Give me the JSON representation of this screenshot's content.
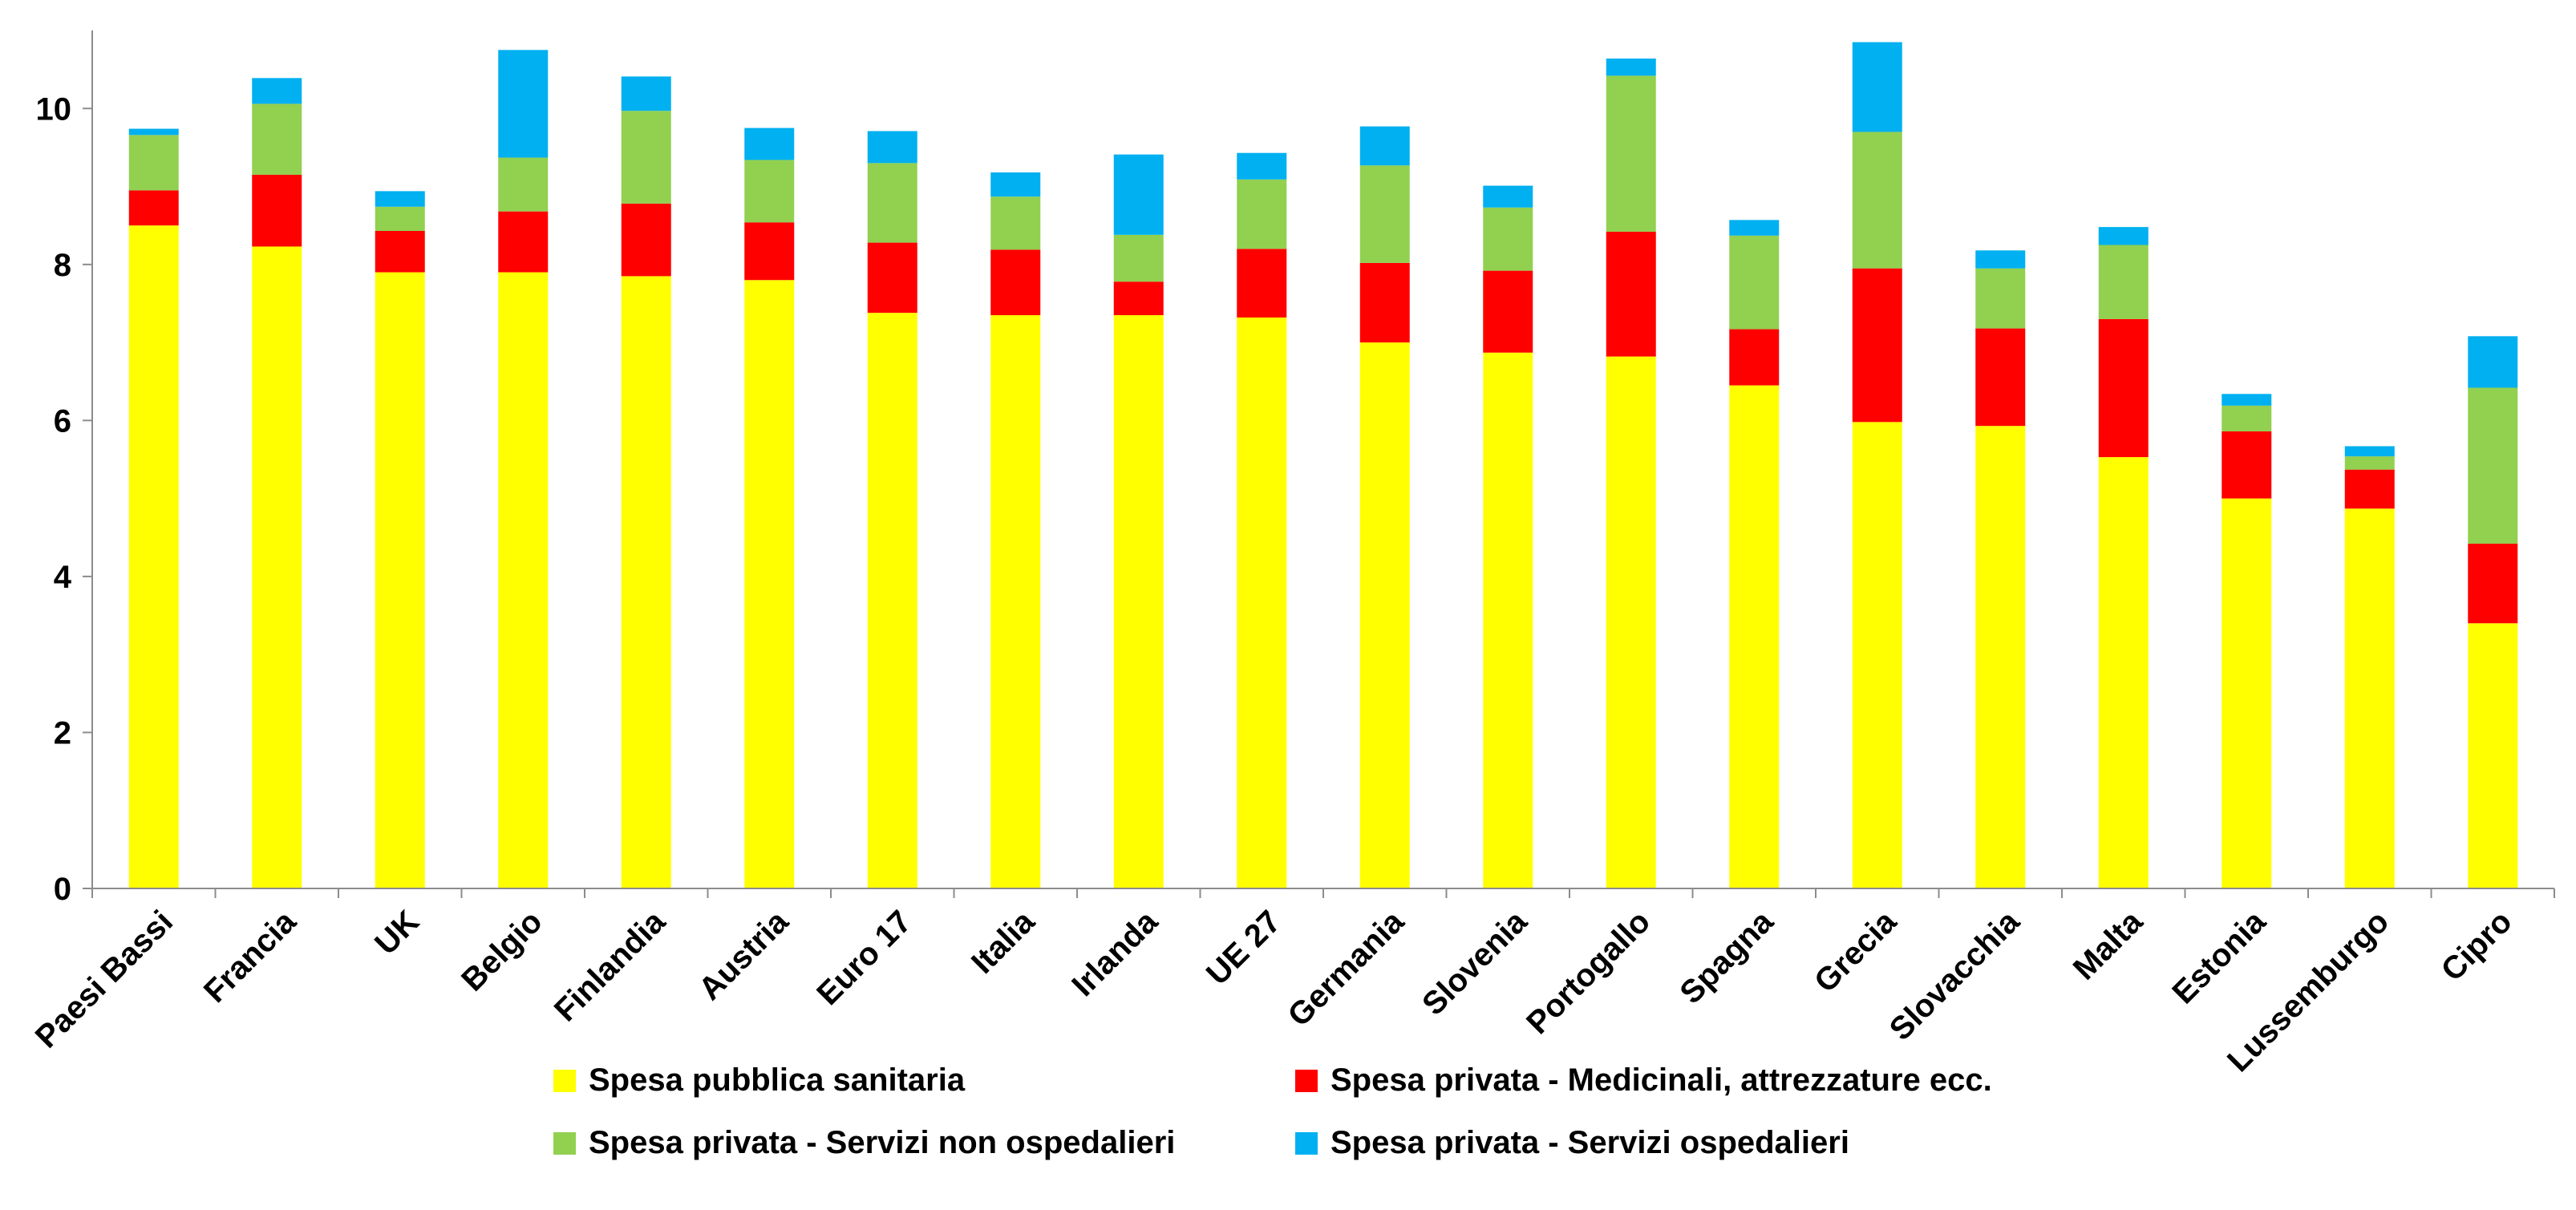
{
  "chart_data": {
    "type": "bar",
    "stacked": true,
    "title": "",
    "xlabel": "",
    "ylabel": "",
    "ylim": [
      0,
      11
    ],
    "yticks": [
      0,
      2,
      4,
      6,
      8,
      10
    ],
    "grid": false,
    "legend_position": "bottom",
    "categories": [
      "Paesi Bassi",
      "Francia",
      "UK",
      "Belgio",
      "Finlandia",
      "Austria",
      "Euro 17",
      "Italia",
      "Irlanda",
      "UE 27",
      "Germania",
      "Slovenia",
      "Portogallo",
      "Spagna",
      "Grecia",
      "Slovacchia",
      "Malta",
      "Estonia",
      "Lussemburgo",
      "Cipro"
    ],
    "series": [
      {
        "name": "Spesa  pubblica sanitaria",
        "color": "#ffff00",
        "values": [
          8.5,
          8.23,
          7.9,
          7.9,
          7.85,
          7.8,
          7.38,
          7.35,
          7.35,
          7.32,
          7.0,
          6.87,
          6.82,
          6.45,
          5.98,
          5.93,
          5.53,
          5.0,
          4.87,
          3.4
        ]
      },
      {
        "name": "Spesa privata - Medicinali, attrezzature ecc.",
        "color": "#ff0000",
        "values": [
          0.45,
          0.92,
          0.53,
          0.78,
          0.93,
          0.74,
          0.9,
          0.84,
          0.43,
          0.88,
          1.02,
          1.05,
          1.6,
          0.72,
          1.97,
          1.25,
          1.77,
          0.86,
          0.5,
          1.02
        ]
      },
      {
        "name": "Spesa privata - Servizi non ospedalieri",
        "color": "#92d050",
        "values": [
          0.71,
          0.91,
          0.31,
          0.69,
          1.19,
          0.8,
          1.02,
          0.68,
          0.6,
          0.89,
          1.25,
          0.81,
          2.0,
          1.2,
          1.75,
          0.77,
          0.95,
          0.33,
          0.17,
          2.0
        ]
      },
      {
        "name": "Spesa privata - Servizi ospedalieri",
        "color": "#00b0f0",
        "values": [
          0.08,
          0.33,
          0.2,
          1.38,
          0.44,
          0.41,
          0.41,
          0.31,
          1.03,
          0.34,
          0.5,
          0.28,
          0.22,
          0.2,
          1.15,
          0.23,
          0.23,
          0.15,
          0.13,
          0.66
        ]
      }
    ]
  }
}
